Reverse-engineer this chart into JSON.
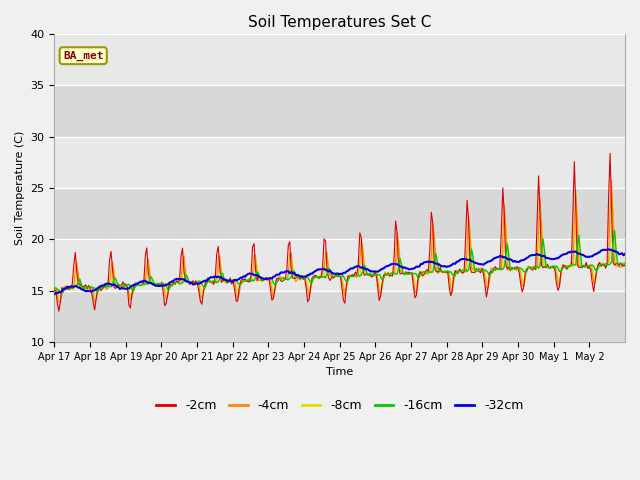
{
  "title": "Soil Temperatures Set C",
  "xlabel": "Time",
  "ylabel": "Soil Temperature (C)",
  "ylim": [
    10,
    40
  ],
  "yticks": [
    10,
    15,
    20,
    25,
    30,
    35,
    40
  ],
  "fig_facecolor": "#f0f0f0",
  "plot_bg_color": "#e0e0e0",
  "legend_label": "BA_met",
  "series_colors": {
    "-2cm": "#dd0000",
    "-4cm": "#ff8800",
    "-8cm": "#dddd00",
    "-16cm": "#00cc00",
    "-32cm": "#0000dd"
  },
  "x_tick_labels": [
    "Apr 17",
    "Apr 18",
    "Apr 19",
    "Apr 20",
    "Apr 21",
    "Apr 22",
    "Apr 23",
    "Apr 24",
    "Apr 25",
    "Apr 26",
    "Apr 27",
    "Apr 28",
    "Apr 29",
    "Apr 30",
    "May 1",
    "May 2"
  ],
  "num_points": 384
}
